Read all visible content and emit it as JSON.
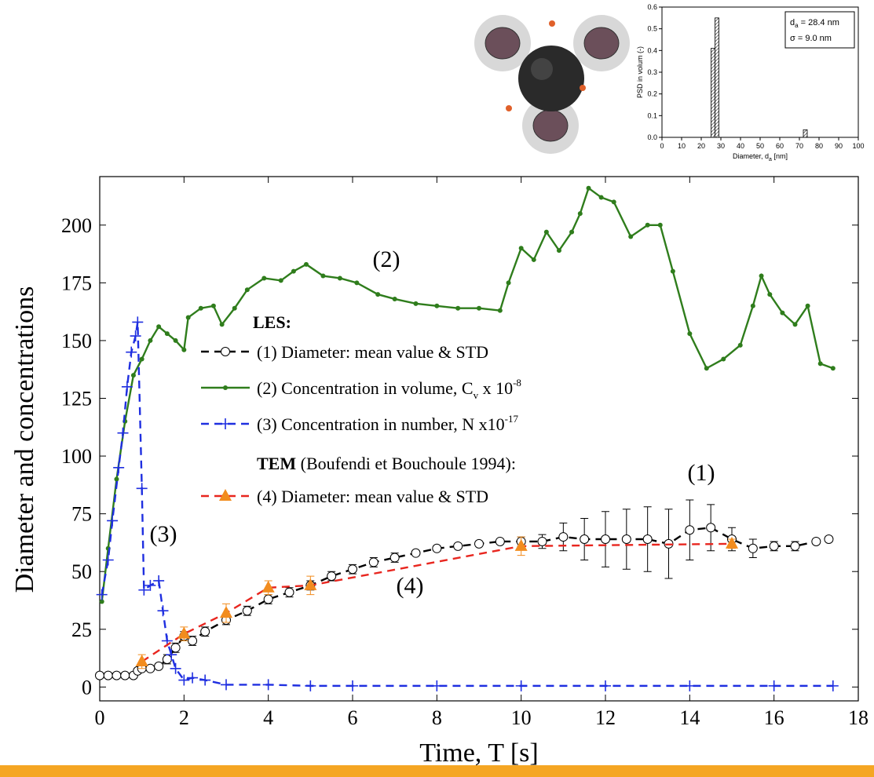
{
  "chart_data": [
    {
      "type": "line",
      "x_label": "Time, T [s]",
      "y_label": "Diameter and concentrations",
      "xlim": [
        0,
        18
      ],
      "ylim": [
        -6,
        221
      ],
      "xticks": [
        0,
        2,
        4,
        6,
        8,
        10,
        12,
        14,
        16,
        18
      ],
      "yticks": [
        0,
        25,
        50,
        75,
        100,
        125,
        150,
        175,
        200
      ],
      "legend_header_1": "LES:",
      "legend_header_2_bold": "TEM",
      "legend_header_2": " (Boufendi et Bouchoule 1994):",
      "annotations": [
        "(1)",
        "(2)",
        "(3)",
        "(4)"
      ],
      "series": [
        {
          "name": "(1) Diameter: mean value & STD",
          "color": "#000000",
          "marker": "circle",
          "dash": true,
          "x": [
            0,
            0.2,
            0.4,
            0.6,
            0.8,
            0.9,
            1.0,
            1.2,
            1.4,
            1.6,
            1.8,
            2.0,
            2.2,
            2.5,
            3.0,
            3.5,
            4.0,
            4.5,
            5.0,
            5.5,
            6.0,
            6.5,
            7.0,
            7.5,
            8.0,
            8.5,
            9.0,
            9.5,
            10.0,
            10.5,
            11.0,
            11.5,
            12.0,
            12.5,
            13.0,
            13.5,
            14.0,
            14.5,
            15.0,
            15.5,
            16.0,
            16.5,
            17.0,
            17.3
          ],
          "values": [
            5,
            5,
            5,
            5,
            5,
            7,
            8,
            8,
            9,
            12,
            17,
            22,
            20,
            24,
            29,
            33,
            38,
            41,
            44,
            48,
            51,
            54,
            56,
            58,
            60,
            61,
            62,
            63,
            63,
            63,
            65,
            64,
            64,
            64,
            64,
            62,
            68,
            69,
            64,
            60,
            61,
            61,
            63,
            64
          ],
          "errors": [
            1,
            1,
            1,
            1,
            1,
            1,
            1,
            1,
            1,
            2,
            2,
            2,
            2,
            2,
            2,
            2,
            2,
            2,
            2,
            2,
            2,
            2,
            2,
            1,
            1,
            1,
            1,
            1,
            2,
            3,
            6,
            9,
            12,
            13,
            14,
            15,
            13,
            10,
            5,
            4,
            2,
            2,
            1,
            1
          ]
        },
        {
          "name": "(2) Concentration in volume, C",
          "name_sub": "v",
          "name_mid": " x 10",
          "name_sup": "-8",
          "color": "#2f7d1c",
          "marker": "dot",
          "dash": false,
          "x": [
            0.05,
            0.2,
            0.4,
            0.6,
            0.8,
            1.0,
            1.2,
            1.4,
            1.6,
            1.8,
            2.0,
            2.1,
            2.4,
            2.7,
            2.9,
            3.2,
            3.5,
            3.9,
            4.3,
            4.6,
            4.9,
            5.3,
            5.7,
            6.1,
            6.6,
            7.0,
            7.5,
            8.0,
            8.5,
            9.0,
            9.5,
            9.7,
            10.0,
            10.3,
            10.6,
            10.9,
            11.2,
            11.4,
            11.6,
            11.9,
            12.2,
            12.6,
            13.0,
            13.3,
            13.6,
            14.0,
            14.4,
            14.8,
            15.2,
            15.5,
            15.7,
            15.9,
            16.2,
            16.5,
            16.8,
            17.1,
            17.4
          ],
          "values": [
            37,
            60,
            90,
            115,
            135,
            142,
            150,
            156,
            153,
            150,
            146,
            160,
            164,
            165,
            157,
            164,
            172,
            177,
            176,
            180,
            183,
            178,
            177,
            175,
            170,
            168,
            166,
            165,
            164,
            164,
            163,
            175,
            190,
            185,
            197,
            189,
            197,
            205,
            216,
            212,
            210,
            195,
            200,
            200,
            180,
            153,
            138,
            142,
            148,
            165,
            178,
            170,
            162,
            157,
            165,
            140,
            138
          ]
        },
        {
          "name": "(3) Concentration in number, N x10",
          "name_sup": "-17",
          "color": "#1f2fe0",
          "marker": "plus",
          "dash": true,
          "x": [
            0.05,
            0.2,
            0.3,
            0.45,
            0.55,
            0.65,
            0.75,
            0.85,
            0.9,
            1.0,
            1.05,
            1.2,
            1.4,
            1.5,
            1.6,
            1.7,
            1.8,
            2.0,
            2.2,
            2.5,
            3.0,
            4.0,
            5.0,
            6.0,
            8.0,
            10.0,
            12.0,
            14.0,
            16.0,
            17.4
          ],
          "values": [
            40,
            55,
            72,
            95,
            110,
            130,
            145,
            152,
            158,
            86,
            42,
            44,
            46,
            33,
            20,
            14,
            8,
            3,
            4,
            3,
            1,
            1,
            0.5,
            0.5,
            0.5,
            0.5,
            0.5,
            0.5,
            0.5,
            0.5
          ]
        },
        {
          "name": "(4) Diameter: mean value & STD",
          "color": "#f28c1e",
          "line_color": "#e8261f",
          "marker": "triangle",
          "dash": true,
          "x": [
            1,
            2,
            3,
            4,
            5,
            10,
            15
          ],
          "values": [
            11,
            23,
            32,
            43,
            44,
            61,
            62
          ],
          "errors": [
            3,
            3,
            4,
            3,
            4,
            4,
            2
          ]
        }
      ]
    },
    {
      "type": "bar",
      "x_label": "Diameter, d",
      "x_label_sub": "a",
      "x_label_end": " [nm]",
      "y_label": "PSD in volum (-)",
      "text_1": "d",
      "text_1_sub": "a",
      "text_1_end": " = 28.4 nm",
      "text_2": "σ = 9.0 nm",
      "xlim": [
        0,
        100
      ],
      "ylim": [
        0,
        0.6
      ],
      "xticks": [
        0,
        10,
        20,
        30,
        40,
        50,
        60,
        70,
        80,
        90,
        100
      ],
      "yticks": [
        {
          "value": 0,
          "label": "0.0"
        },
        0.1,
        0.2,
        0.3,
        0.4,
        0.5,
        0.6
      ],
      "x": [
        26,
        28,
        73
      ],
      "values": [
        0.41,
        0.55,
        0.035
      ],
      "color": "#444444"
    }
  ]
}
